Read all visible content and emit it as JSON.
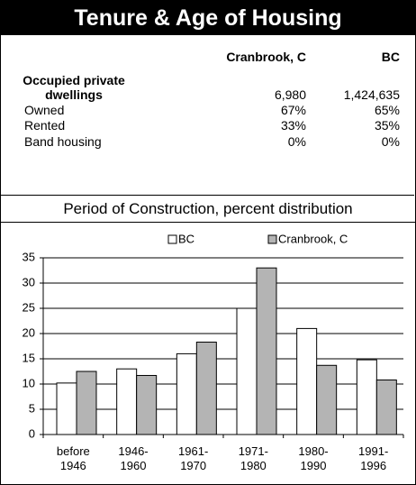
{
  "header": {
    "title": "Tenure & Age of Housing"
  },
  "table": {
    "columns": [
      "Cranbrook, C",
      "BC"
    ],
    "rows": [
      [
        "Occupied private dwellings",
        "6,980",
        "1,424,635"
      ],
      [
        "Owned",
        "67%",
        "65%"
      ],
      [
        "Rented",
        "33%",
        "35%"
      ],
      [
        "Band housing",
        "0%",
        "0%"
      ]
    ]
  },
  "chart_data": {
    "type": "bar",
    "title": "Period of Construction, percent distribution",
    "categories": [
      "before 1946",
      "1946-1960",
      "1961-1970",
      "1971-1980",
      "1980-1990",
      "1991-1996"
    ],
    "series": [
      {
        "name": "BC",
        "color": "#ffffff",
        "values": [
          10.2,
          13,
          16,
          25,
          21,
          14.8
        ]
      },
      {
        "name": "Cranbrook, C",
        "color": "#b4b4b4",
        "values": [
          12.5,
          11.7,
          18.3,
          33,
          13.7,
          10.8
        ]
      }
    ],
    "ylim": [
      0,
      35
    ],
    "yticks": [
      0,
      5,
      10,
      15,
      20,
      25,
      30,
      35
    ],
    "grid": true,
    "legend": "top"
  }
}
